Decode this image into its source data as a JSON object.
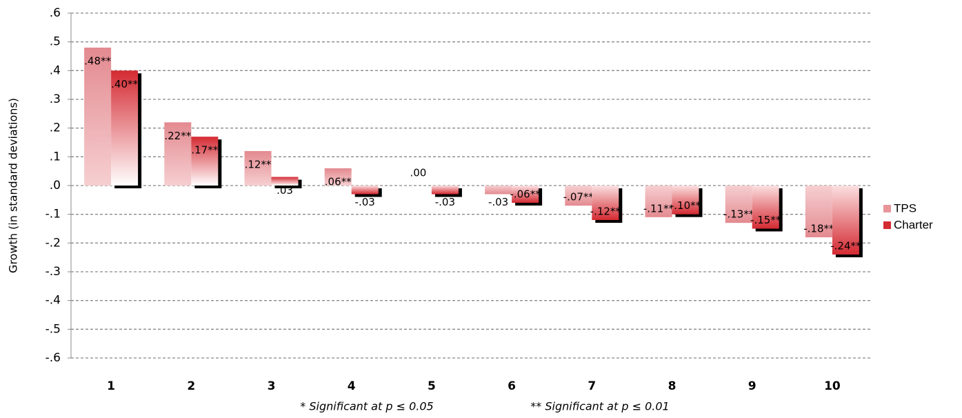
{
  "chart_data": {
    "type": "bar",
    "y_label": "Growth (in standard deviations)",
    "categories": [
      "1",
      "2",
      "3",
      "4",
      "5",
      "6",
      "7",
      "8",
      "9",
      "10"
    ],
    "series": [
      {
        "name": "TPS",
        "color": "#e8959a",
        "values": [
          0.48,
          0.22,
          0.12,
          0.06,
          0.0,
          -0.03,
          -0.07,
          -0.11,
          -0.13,
          -0.18
        ],
        "value_labels": [
          ".48**",
          ".22**",
          ".12**",
          ".06**",
          ".00",
          "-.03",
          "-.07**",
          "-.11**",
          "-.13**",
          "-.18**"
        ]
      },
      {
        "name": "Charter",
        "color": "#d42a32",
        "values": [
          0.4,
          0.17,
          0.03,
          -0.03,
          -0.03,
          -0.06,
          -0.12,
          -0.1,
          -0.15,
          -0.24
        ],
        "value_labels": [
          ".40**",
          ".17**",
          ".03",
          "-.03",
          "-.03",
          "-.06**",
          "-.12**",
          "-.10**",
          "-.15**",
          "-.24**"
        ]
      }
    ],
    "ylim": [
      -0.6,
      0.6
    ],
    "yticks": [
      {
        "value": 0.6,
        "label": ".6"
      },
      {
        "value": 0.5,
        "label": ".5"
      },
      {
        "value": 0.4,
        "label": ".4"
      },
      {
        "value": 0.3,
        "label": ".3"
      },
      {
        "value": 0.2,
        "label": ".2"
      },
      {
        "value": 0.1,
        "label": ".1"
      },
      {
        "value": 0.0,
        "label": ".0"
      },
      {
        "value": -0.1,
        "label": "-.1"
      },
      {
        "value": -0.2,
        "label": "-.2"
      },
      {
        "value": -0.3,
        "label": "-.3"
      },
      {
        "value": -0.4,
        "label": "-.4"
      },
      {
        "value": -0.5,
        "label": "-.5"
      },
      {
        "value": -0.6,
        "label": "-.6"
      }
    ],
    "grid": true,
    "legend": "right",
    "notes": [
      "* Significant at p ≤ 0.05",
      "** Significant at p ≤ 0.01"
    ]
  }
}
